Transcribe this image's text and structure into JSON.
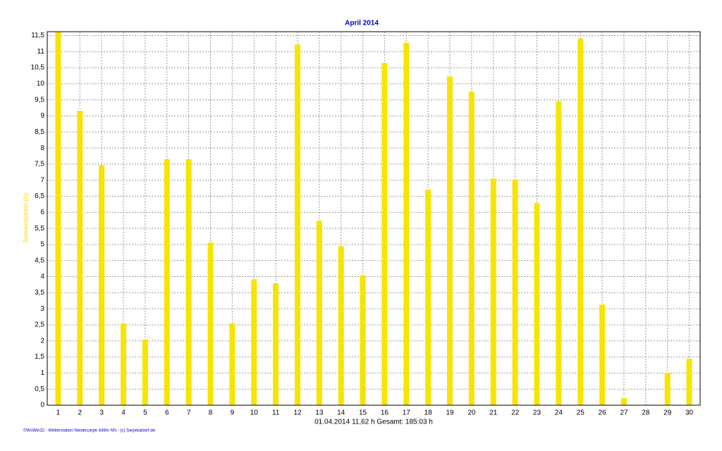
{
  "chart_data": {
    "type": "bar",
    "title": "April 2014",
    "y_label": "Sonnenschein (h)",
    "footer": "01.04.2014   11,62 h Gesamt: 185:03 h",
    "credit": "©WsWin32 - Wetterstation Niederzarpe 449m NN - (c) Sarpetaldorf.de",
    "categories": [
      "1",
      "2",
      "3",
      "4",
      "5",
      "6",
      "7",
      "8",
      "9",
      "10",
      "11",
      "12",
      "13",
      "14",
      "15",
      "16",
      "17",
      "18",
      "19",
      "20",
      "21",
      "22",
      "23",
      "24",
      "25",
      "26",
      "27",
      "28",
      "29",
      "30"
    ],
    "values": [
      11.62,
      9.16,
      7.47,
      2.54,
      2.04,
      7.65,
      7.65,
      5.06,
      2.54,
      3.92,
      3.79,
      11.22,
      5.74,
      4.95,
      4.03,
      10.65,
      11.28,
      6.7,
      10.23,
      9.75,
      7.05,
      7.01,
      6.29,
      9.46,
      11.41,
      3.13,
      0.22,
      0,
      1.01,
      1.45
    ],
    "color": "#f7e400",
    "ylim": [
      0,
      11.62
    ],
    "yticks": [
      0,
      {
        "value": 0.5,
        "label": "0,5"
      },
      1,
      {
        "value": 1.5,
        "label": "1,5"
      },
      2,
      {
        "value": 2.5,
        "label": "2,5"
      },
      3,
      {
        "value": 3.5,
        "label": "3,5"
      },
      4,
      {
        "value": 4.5,
        "label": "4,5"
      },
      5,
      {
        "value": 5.5,
        "label": "5,5"
      },
      6,
      {
        "value": 6.5,
        "label": "6,5"
      },
      7,
      {
        "value": 7.5,
        "label": "7,5"
      },
      8,
      {
        "value": 8.5,
        "label": "8,5"
      },
      9,
      {
        "value": 9.5,
        "label": "9,5"
      },
      10,
      {
        "value": 10.5,
        "label": "10,5"
      },
      11,
      {
        "value": 11.5,
        "label": "11,5"
      }
    ],
    "grid": true
  }
}
